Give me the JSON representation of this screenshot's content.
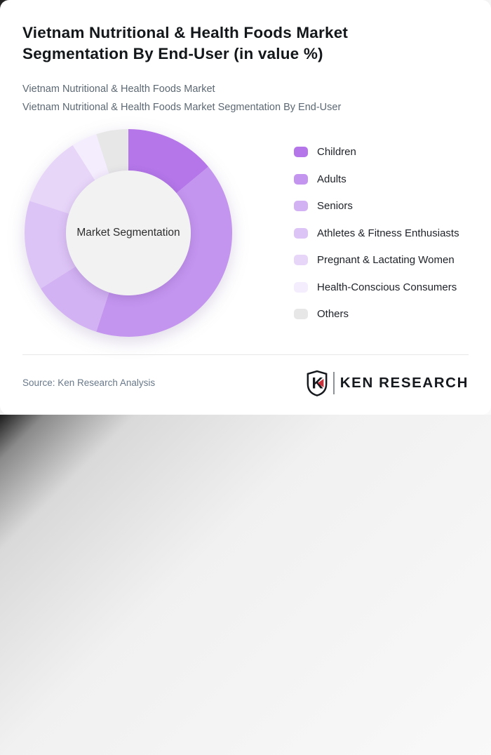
{
  "header": {
    "title_line1": "Vietnam Nutritional & Health Foods Market",
    "title_line2": "Segmentation By End-User (in value %)",
    "subtitle_line1": "Vietnam Nutritional & Health Foods Market",
    "subtitle_line2": "Vietnam Nutritional & Health Foods Market Segmentation By End-User"
  },
  "chart_data": {
    "type": "pie",
    "variant": "donut",
    "title": "Vietnam Nutritional & Health Foods Market Segmentation By End-User (in value %)",
    "center_label": "Market Segmentation",
    "unit": "%",
    "start_angle_deg": 0,
    "direction": "clockwise",
    "legend_position": "right",
    "categories": [
      "Children",
      "Adults",
      "Seniors",
      "Athletes & Fitness Enthusiasts",
      "Pregnant & Lactating Women",
      "Health-Conscious Consumers",
      "Others"
    ],
    "values": [
      14,
      41,
      11,
      14,
      11,
      4,
      5
    ],
    "colors": [
      "#b476e8",
      "#c495ef",
      "#d3b2f3",
      "#ddc4f6",
      "#e8d6f9",
      "#f4edfd",
      "#e7e7e7"
    ],
    "center_fill": "#f2f2f2"
  },
  "footer": {
    "source_text": "Source: Ken Research Analysis",
    "logo": {
      "mark_letter": "K",
      "wordmark": "KEN RESEARCH",
      "accent_color": "#c9313b",
      "text_color": "#16191e"
    }
  }
}
